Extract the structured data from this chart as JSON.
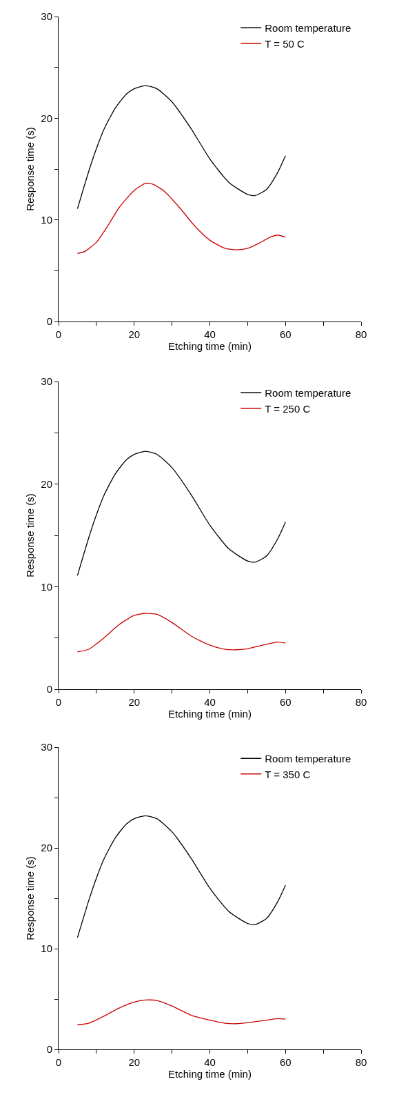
{
  "chart_data": [
    {
      "type": "line",
      "xlabel": "Etching time (min)",
      "ylabel": "Response time (s)",
      "xlim": [
        0,
        80
      ],
      "ylim": [
        0,
        30
      ],
      "xticks": [
        0,
        {
          "value": 10,
          "label": null
        },
        20,
        {
          "value": 30,
          "label": null
        },
        40,
        {
          "value": 50,
          "label": null
        },
        60,
        {
          "value": 70,
          "label": null
        },
        80
      ],
      "yticks": [
        0,
        {
          "value": 5,
          "label": null
        },
        10,
        {
          "value": 15,
          "label": null
        },
        20,
        {
          "value": 25,
          "label": null
        },
        30
      ],
      "legend": "top right",
      "marker": "none",
      "line_style": "solid",
      "series": [
        {
          "name": "Room temperature",
          "color": "#000000",
          "x": [
            5,
            8,
            10,
            12,
            15,
            18,
            20,
            23,
            26,
            30,
            35,
            40,
            45,
            50,
            52,
            55,
            58,
            60
          ],
          "values": [
            11.1,
            14.8,
            17.0,
            18.9,
            21.0,
            22.4,
            22.9,
            23.2,
            22.9,
            21.6,
            19.0,
            16.0,
            13.7,
            12.5,
            12.4,
            13.0,
            14.7,
            16.3
          ]
        },
        {
          "name": "T = 50 C",
          "color": "#cc0000",
          "x": [
            5,
            7,
            10,
            13,
            16,
            20,
            23,
            25,
            28,
            32,
            36,
            40,
            44,
            47,
            50,
            53,
            56,
            58,
            60
          ],
          "values": [
            6.7,
            6.9,
            7.8,
            9.4,
            11.2,
            12.9,
            13.6,
            13.5,
            12.8,
            11.2,
            9.4,
            8.0,
            7.2,
            7.05,
            7.2,
            7.7,
            8.3,
            8.5,
            8.3
          ]
        }
      ]
    },
    {
      "type": "line",
      "xlabel": "Etching time (min)",
      "ylabel": "Response time (s)",
      "xlim": [
        0,
        80
      ],
      "ylim": [
        0,
        30
      ],
      "xticks": [
        0,
        {
          "value": 10,
          "label": null
        },
        20,
        {
          "value": 30,
          "label": null
        },
        40,
        {
          "value": 50,
          "label": null
        },
        60,
        {
          "value": 70,
          "label": null
        },
        80
      ],
      "yticks": [
        0,
        {
          "value": 5,
          "label": null
        },
        10,
        {
          "value": 15,
          "label": null
        },
        20,
        {
          "value": 25,
          "label": null
        },
        30
      ],
      "legend": "top right",
      "marker": "none",
      "line_style": "solid",
      "series": [
        {
          "name": "Room temperature",
          "color": "#000000",
          "x": [
            5,
            8,
            10,
            12,
            15,
            18,
            20,
            23,
            26,
            30,
            35,
            40,
            45,
            50,
            52,
            55,
            58,
            60
          ],
          "values": [
            11.1,
            14.8,
            17.0,
            18.9,
            21.0,
            22.4,
            22.9,
            23.2,
            22.9,
            21.6,
            19.0,
            16.0,
            13.7,
            12.5,
            12.4,
            13.0,
            14.7,
            16.3
          ]
        },
        {
          "name": "T = 250 C",
          "color": "#cc0000",
          "x": [
            5,
            8,
            12,
            16,
            20,
            23,
            26,
            30,
            35,
            40,
            44,
            47,
            50,
            54,
            58,
            60
          ],
          "values": [
            3.65,
            3.9,
            5.0,
            6.3,
            7.2,
            7.4,
            7.3,
            6.5,
            5.2,
            4.3,
            3.9,
            3.85,
            3.95,
            4.3,
            4.6,
            4.5
          ]
        }
      ]
    },
    {
      "type": "line",
      "xlabel": "Etching time (min)",
      "ylabel": "Response time (s)",
      "xlim": [
        0,
        80
      ],
      "ylim": [
        0,
        30
      ],
      "xticks": [
        0,
        {
          "value": 10,
          "label": null
        },
        20,
        {
          "value": 30,
          "label": null
        },
        40,
        {
          "value": 50,
          "label": null
        },
        60,
        {
          "value": 70,
          "label": null
        },
        80
      ],
      "yticks": [
        0,
        {
          "value": 5,
          "label": null
        },
        10,
        {
          "value": 15,
          "label": null
        },
        20,
        {
          "value": 25,
          "label": null
        },
        30
      ],
      "legend": "top right",
      "marker": "none",
      "line_style": "solid",
      "series": [
        {
          "name": "Room temperature",
          "color": "#000000",
          "x": [
            5,
            8,
            10,
            12,
            15,
            18,
            20,
            23,
            26,
            30,
            35,
            40,
            45,
            50,
            52,
            55,
            58,
            60
          ],
          "values": [
            11.1,
            14.8,
            17.0,
            18.9,
            21.0,
            22.4,
            22.9,
            23.2,
            22.9,
            21.6,
            19.0,
            16.0,
            13.7,
            12.5,
            12.4,
            13.0,
            14.7,
            16.3
          ]
        },
        {
          "name": "T = 350 C",
          "color": "#cc0000",
          "x": [
            5,
            8,
            12,
            16,
            20,
            23,
            26,
            30,
            35,
            40,
            44,
            47,
            50,
            54,
            58,
            60
          ],
          "values": [
            2.45,
            2.6,
            3.3,
            4.1,
            4.7,
            4.9,
            4.85,
            4.3,
            3.4,
            2.9,
            2.6,
            2.55,
            2.65,
            2.85,
            3.05,
            3.0
          ]
        }
      ]
    }
  ]
}
